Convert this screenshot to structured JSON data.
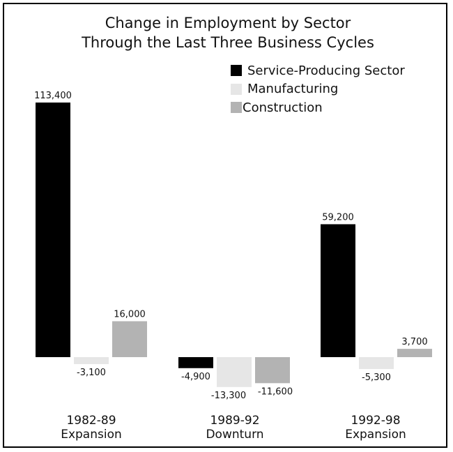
{
  "chart_data": {
    "type": "bar",
    "title_lines": [
      "Change in Employment by Sector",
      "Through the Last Three Business Cycles"
    ],
    "categories": [
      {
        "line1": "1982-89",
        "line2": "Expansion"
      },
      {
        "line1": "1989-92",
        "line2": "Downturn"
      },
      {
        "line1": "1992-98",
        "line2": "Expansion"
      }
    ],
    "series": [
      {
        "name": "Service-Producing Sector",
        "color": "#000000",
        "values": [
          113400,
          -4900,
          59200
        ],
        "labels": [
          "113,400",
          "-4,900",
          "59,200"
        ]
      },
      {
        "name": "Manufacturing",
        "color": "#e6e6e6",
        "values": [
          -3100,
          -13300,
          -5300
        ],
        "labels": [
          "-3,100",
          "-13,300",
          "-5,300"
        ]
      },
      {
        "name": "Construction",
        "color": "#b3b3b3",
        "values": [
          16000,
          -11600,
          3700
        ],
        "labels": [
          "16,000",
          "-11,600",
          "3,700"
        ]
      }
    ],
    "legend_position": "top-right",
    "grid": false
  }
}
